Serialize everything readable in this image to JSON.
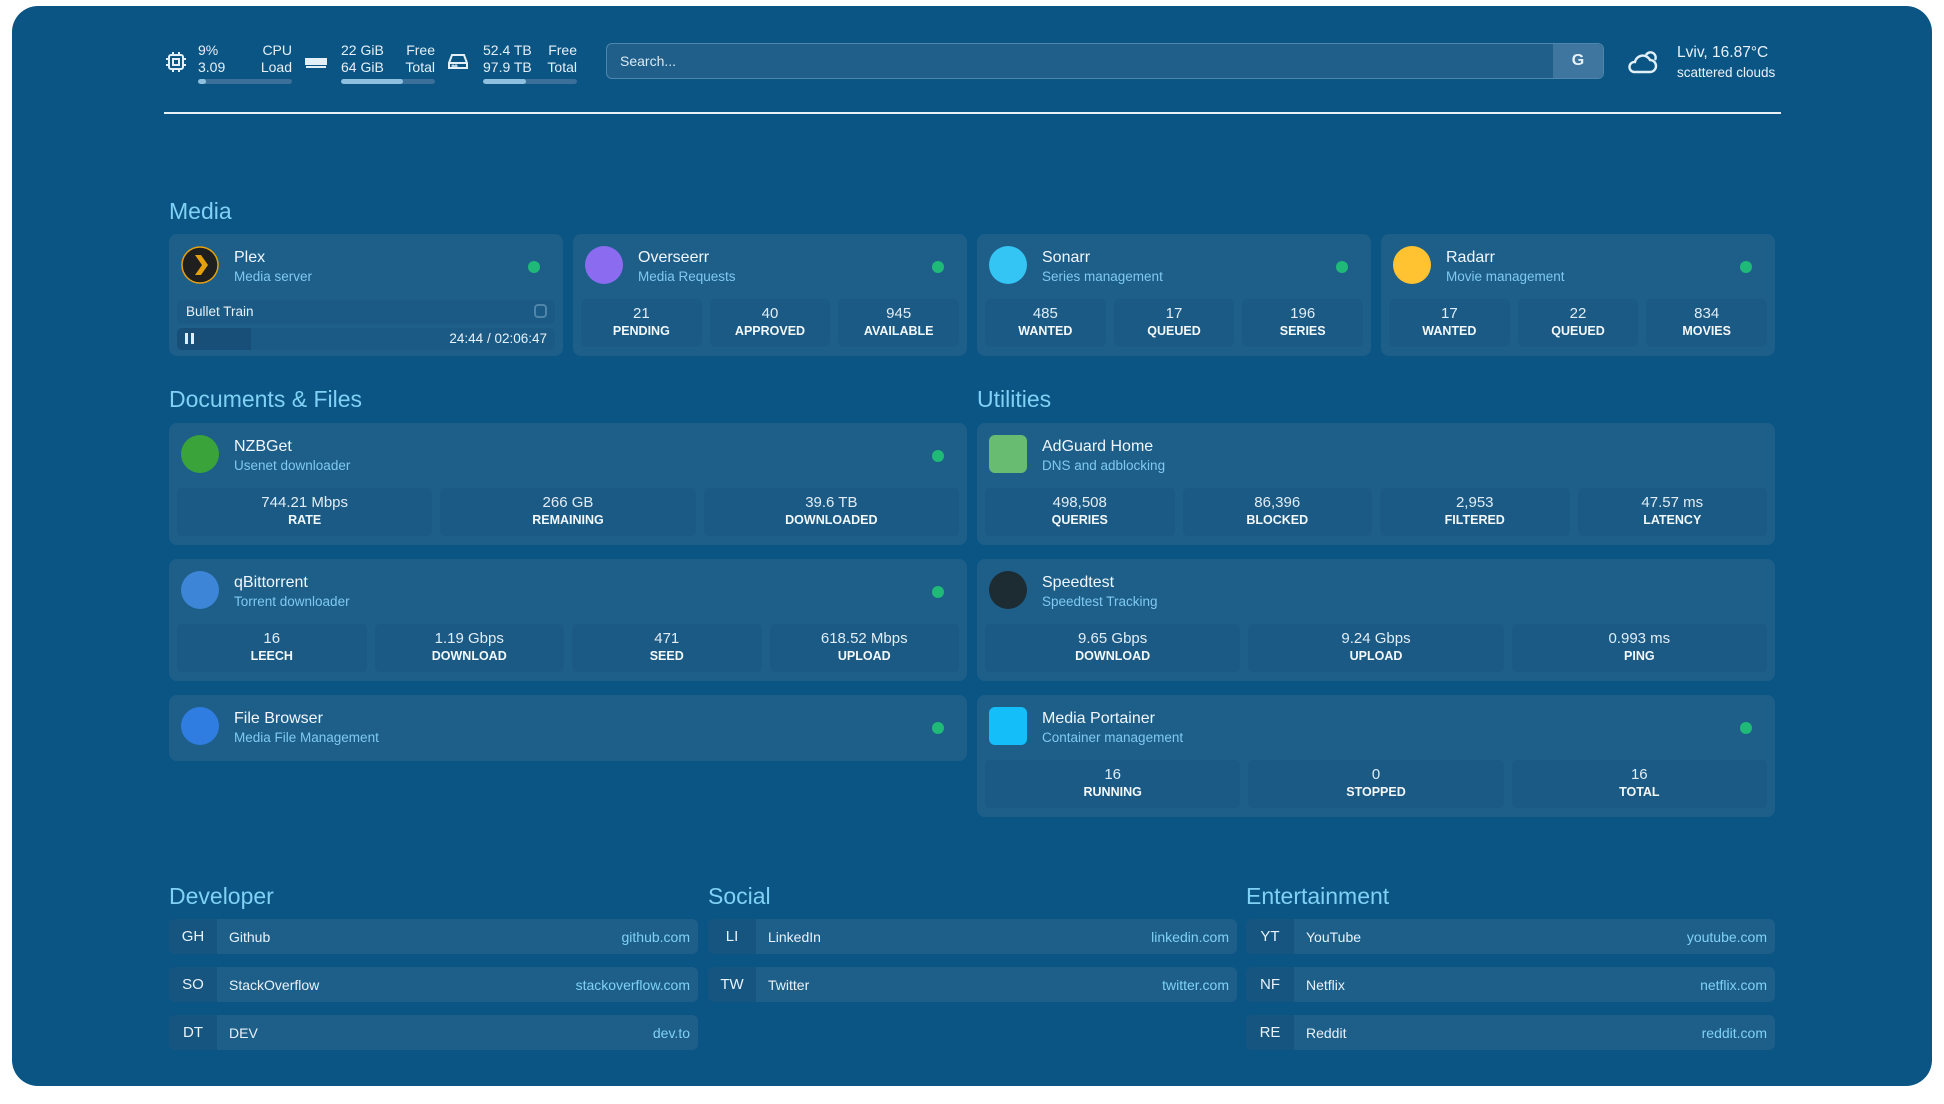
{
  "header": {
    "cpu": {
      "value": "9%",
      "label": "CPU",
      "value2": "3.09",
      "label2": "Load",
      "percent": 9
    },
    "memory": {
      "value": "22 GiB",
      "label": "Free",
      "value2": "64 GiB",
      "label2": "Total",
      "percent": 66
    },
    "disk": {
      "value": "52.4 TB",
      "label": "Free",
      "value2": "97.9 TB",
      "label2": "Total",
      "percent": 46
    },
    "search": {
      "placeholder": "Search...",
      "button": "G"
    },
    "weather": {
      "location": "Lviv, 16.87°C",
      "condition": "scattered clouds",
      "icon": "cloud-sun-icon"
    }
  },
  "sections": {
    "media": "Media",
    "documents": "Documents & Files",
    "utilities": "Utilities",
    "developer": "Developer",
    "social": "Social",
    "entertainment": "Entertainment"
  },
  "plex": {
    "name": "Plex",
    "desc": "Media server",
    "now_playing": "Bullet Train",
    "time": "24:44 / 02:06:47",
    "progress": 19.5
  },
  "services": [
    {
      "id": "overseerr",
      "name": "Overseerr",
      "desc": "Media Requests",
      "icon_color": "#8b6cf0",
      "stats": [
        {
          "v": "21",
          "l": "PENDING"
        },
        {
          "v": "40",
          "l": "APPROVED"
        },
        {
          "v": "945",
          "l": "AVAILABLE"
        }
      ]
    },
    {
      "id": "sonarr",
      "name": "Sonarr",
      "desc": "Series management",
      "icon_color": "#35c5f4",
      "stats": [
        {
          "v": "485",
          "l": "WANTED"
        },
        {
          "v": "17",
          "l": "QUEUED"
        },
        {
          "v": "196",
          "l": "SERIES"
        }
      ]
    },
    {
      "id": "radarr",
      "name": "Radarr",
      "desc": "Movie management",
      "icon_color": "#ffc230",
      "stats": [
        {
          "v": "17",
          "l": "WANTED"
        },
        {
          "v": "22",
          "l": "QUEUED"
        },
        {
          "v": "834",
          "l": "MOVIES"
        }
      ]
    },
    {
      "id": "nzbget",
      "name": "NZBGet",
      "desc": "Usenet downloader",
      "icon_color": "#3aa33a",
      "stats": [
        {
          "v": "744.21 Mbps",
          "l": "RATE"
        },
        {
          "v": "266 GB",
          "l": "REMAINING"
        },
        {
          "v": "39.6 TB",
          "l": "DOWNLOADED"
        }
      ]
    },
    {
      "id": "qbittorrent",
      "name": "qBittorrent",
      "desc": "Torrent downloader",
      "icon_color": "#3d85d6",
      "stats": [
        {
          "v": "16",
          "l": "LEECH"
        },
        {
          "v": "1.19 Gbps",
          "l": "DOWNLOAD"
        },
        {
          "v": "471",
          "l": "SEED"
        },
        {
          "v": "618.52 Mbps",
          "l": "UPLOAD"
        }
      ]
    },
    {
      "id": "filebrowser",
      "name": "File Browser",
      "desc": "Media File Management",
      "icon_color": "#2f7de1",
      "stats": []
    },
    {
      "id": "adguard",
      "name": "AdGuard Home",
      "desc": "DNS and adblocking",
      "icon_color": "#68bc71",
      "stats": [
        {
          "v": "498,508",
          "l": "QUERIES"
        },
        {
          "v": "86,396",
          "l": "BLOCKED"
        },
        {
          "v": "2,953",
          "l": "FILTERED"
        },
        {
          "v": "47.57 ms",
          "l": "LATENCY"
        }
      ]
    },
    {
      "id": "speedtest",
      "name": "Speedtest",
      "desc": "Speedtest Tracking",
      "icon_color": "#1d2b33",
      "stats": [
        {
          "v": "9.65 Gbps",
          "l": "DOWNLOAD"
        },
        {
          "v": "9.24 Gbps",
          "l": "UPLOAD"
        },
        {
          "v": "0.993 ms",
          "l": "PING"
        }
      ]
    },
    {
      "id": "portainer",
      "name": "Media Portainer",
      "desc": "Container management",
      "icon_color": "#13bef9",
      "stats": [
        {
          "v": "16",
          "l": "RUNNING"
        },
        {
          "v": "0",
          "l": "STOPPED"
        },
        {
          "v": "16",
          "l": "TOTAL"
        }
      ]
    }
  ],
  "status_color": "#1fb978",
  "bookmarks": {
    "developer": [
      {
        "abbr": "GH",
        "name": "Github",
        "url": "github.com"
      },
      {
        "abbr": "SO",
        "name": "StackOverflow",
        "url": "stackoverflow.com"
      },
      {
        "abbr": "DT",
        "name": "DEV",
        "url": "dev.to"
      }
    ],
    "social": [
      {
        "abbr": "LI",
        "name": "LinkedIn",
        "url": "linkedin.com"
      },
      {
        "abbr": "TW",
        "name": "Twitter",
        "url": "twitter.com"
      }
    ],
    "entertainment": [
      {
        "abbr": "YT",
        "name": "YouTube",
        "url": "youtube.com"
      },
      {
        "abbr": "NF",
        "name": "Netflix",
        "url": "netflix.com"
      },
      {
        "abbr": "RE",
        "name": "Reddit",
        "url": "reddit.com"
      }
    ]
  }
}
